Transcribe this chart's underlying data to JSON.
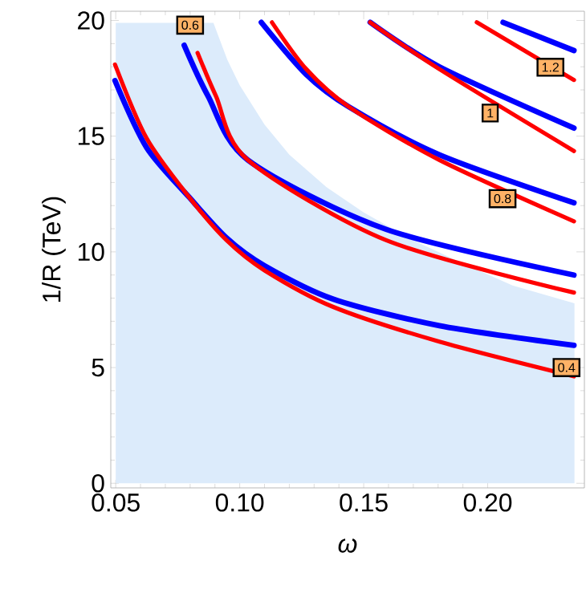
{
  "chart_data": {
    "type": "line",
    "xlabel": "ω",
    "ylabel": "1/R (TeV)",
    "xlim": [
      0.048,
      0.239
    ],
    "ylim": [
      -0.2,
      20.4
    ],
    "xticks": [
      0.05,
      {
        "value": 0.1,
        "label": "0.10"
      },
      0.15,
      {
        "value": 0.2,
        "label": "0.20"
      }
    ],
    "yticks": [
      0,
      5,
      10,
      15,
      20
    ],
    "series": [
      {
        "type": "area",
        "color": "#dcebfb",
        "x": [
          0.05,
          0.0894,
          0.095,
          0.1,
          0.11,
          0.12,
          0.135,
          0.15,
          0.17,
          0.19,
          0.21,
          0.235
        ],
        "values": [
          19.9,
          19.9,
          18.3,
          17.2,
          15.5,
          14.2,
          12.8,
          11.7,
          10.5,
          9.5,
          8.55,
          7.78
        ]
      },
      {
        "color": "#0000ff",
        "x": [
          0.0497,
          0.0625,
          0.0797,
          0.0947,
          0.11,
          0.1377,
          0.1805,
          0.2348
        ],
        "values": [
          17.4,
          14.5,
          12.35,
          10.6,
          9.4,
          7.96,
          6.81,
          5.96
        ]
      },
      {
        "color": "#ff0000",
        "x": [
          0.0497,
          0.0625,
          0.0797,
          0.0947,
          0.11,
          0.1377,
          0.1805,
          0.2348
        ],
        "values": [
          18.1,
          14.9,
          12.35,
          10.5,
          9.2,
          7.62,
          6.12,
          4.62
        ]
      },
      {
        "color": "#0000ff",
        "x": [
          0.0776,
          0.0872,
          0.1033,
          0.1591,
          0.2348
        ],
        "values": [
          18.93,
          16.74,
          13.97,
          10.97,
          9.0
        ]
      },
      {
        "color": "#ff0000",
        "x": [
          0.083,
          0.0904,
          0.1033,
          0.1591,
          0.2348
        ],
        "values": [
          18.6,
          16.74,
          13.97,
          10.5,
          8.24
        ]
      },
      {
        "color": "#0000ff",
        "x": [
          0.1087,
          0.1269,
          0.144,
          0.1805,
          0.2348
        ],
        "values": [
          19.92,
          17.66,
          16.27,
          14.2,
          12.12
        ]
      },
      {
        "color": "#ff0000",
        "x": [
          0.113,
          0.1269,
          0.144,
          0.1805,
          0.2348
        ],
        "values": [
          19.92,
          17.89,
          16.27,
          13.97,
          11.32
        ]
      },
      {
        "color": "#0000ff",
        "x": [
          0.1526,
          0.1805,
          0.2348
        ],
        "values": [
          19.92,
          18.0,
          15.35
        ]
      },
      {
        "color": "#ff0000",
        "x": [
          0.1526,
          0.1805,
          0.2348
        ],
        "values": [
          19.92,
          17.9,
          14.36
        ]
      },
      {
        "color": "#0000ff",
        "x": [
          0.2062,
          0.2348
        ],
        "values": [
          19.92,
          18.7
        ]
      },
      {
        "color": "#ff0000",
        "x": [
          0.1956,
          0.2348
        ],
        "values": [
          19.92,
          17.43
        ]
      }
    ],
    "annotations": [
      {
        "text": "0.6",
        "x": 0.08,
        "y": 19.8
      },
      {
        "text": "1.2",
        "x": 0.2253,
        "y": 17.98
      },
      {
        "text": "1",
        "x": 0.201,
        "y": 16.0
      },
      {
        "text": "0.8",
        "x": 0.206,
        "y": 12.3
      },
      {
        "text": "0.4",
        "x": 0.2318,
        "y": 5.0
      }
    ]
  }
}
